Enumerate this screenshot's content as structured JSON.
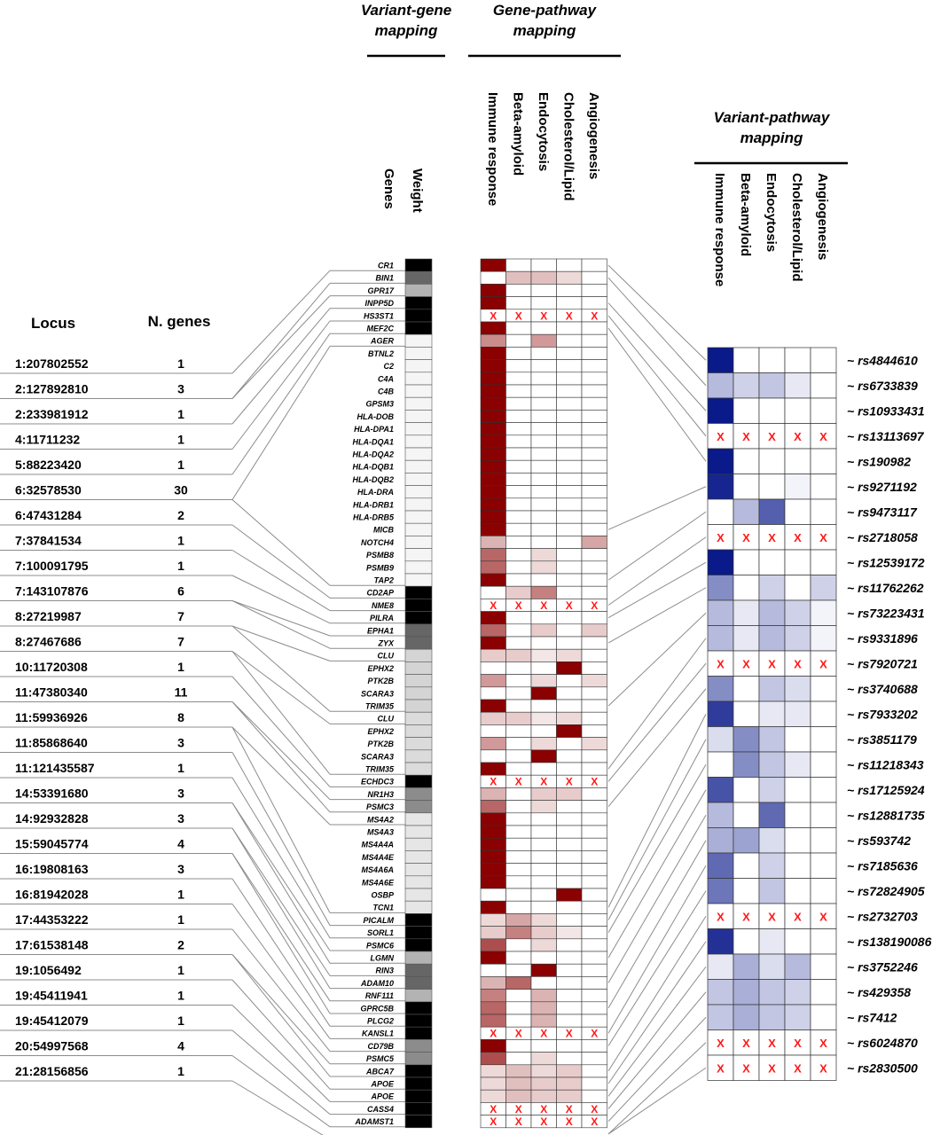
{
  "headers": {
    "variant_gene": [
      "Variant-gene",
      "mapping"
    ],
    "gene_pathway": [
      "Gene-pathway",
      "mapping"
    ],
    "variant_pathway": [
      "Variant-pathway",
      "mapping"
    ],
    "genes_col": "Genes",
    "weight_col": "Weight",
    "locus_col": "Locus",
    "ngenes_col": "N. genes"
  },
  "pathways": [
    "Immune response",
    "Beta-amyloid",
    "Endocytosis",
    "Cholesterol/Lipid",
    "Angiogenesis"
  ],
  "colors": {
    "gene_pathway_full": "#8b0000",
    "variant_pathway_full": "#0a1a8a",
    "x_mark": "#ff1a1a",
    "line": "#8c8c8c"
  },
  "x_label": "X",
  "loci": [
    {
      "locus": "1:207802552",
      "n_genes": "1"
    },
    {
      "locus": "2:127892810",
      "n_genes": "3"
    },
    {
      "locus": "2:233981912",
      "n_genes": "1"
    },
    {
      "locus": "4:11711232",
      "n_genes": "1"
    },
    {
      "locus": "5:88223420",
      "n_genes": "1"
    },
    {
      "locus": "6:32578530",
      "n_genes": "30"
    },
    {
      "locus": "6:47431284",
      "n_genes": "2"
    },
    {
      "locus": "7:37841534",
      "n_genes": "1"
    },
    {
      "locus": "7:100091795",
      "n_genes": "1"
    },
    {
      "locus": "7:143107876",
      "n_genes": "6"
    },
    {
      "locus": "8:27219987",
      "n_genes": "7"
    },
    {
      "locus": "8:27467686",
      "n_genes": "7"
    },
    {
      "locus": "10:11720308",
      "n_genes": "1"
    },
    {
      "locus": "11:47380340",
      "n_genes": "11"
    },
    {
      "locus": "11:59936926",
      "n_genes": "8"
    },
    {
      "locus": "11:85868640",
      "n_genes": "3"
    },
    {
      "locus": "11:121435587",
      "n_genes": "1"
    },
    {
      "locus": "14:53391680",
      "n_genes": "3"
    },
    {
      "locus": "14:92932828",
      "n_genes": "3"
    },
    {
      "locus": "15:59045774",
      "n_genes": "4"
    },
    {
      "locus": "16:19808163",
      "n_genes": "3"
    },
    {
      "locus": "16:81942028",
      "n_genes": "1"
    },
    {
      "locus": "17:44353222",
      "n_genes": "1"
    },
    {
      "locus": "17:61538148",
      "n_genes": "2"
    },
    {
      "locus": "19:1056492",
      "n_genes": "1"
    },
    {
      "locus": "19:45411941",
      "n_genes": "1"
    },
    {
      "locus": "19:45412079",
      "n_genes": "1"
    },
    {
      "locus": "20:54997568",
      "n_genes": "4"
    },
    {
      "locus": "21:28156856",
      "n_genes": "1"
    }
  ],
  "genes": [
    {
      "name": "CR1",
      "weight": 1.0,
      "p": [
        1,
        0,
        0,
        0,
        0
      ]
    },
    {
      "name": "BIN1",
      "weight": 0.6,
      "p": [
        0,
        0.25,
        0.25,
        0.15,
        0
      ]
    },
    {
      "name": "GPR17",
      "weight": 0.3,
      "p": [
        1,
        0,
        0,
        0,
        0
      ]
    },
    {
      "name": "INPP5D",
      "weight": 1.0,
      "p": [
        1,
        0,
        0,
        0,
        0
      ]
    },
    {
      "name": "HS3ST1",
      "weight": 1.0,
      "p": [
        "X",
        "X",
        "X",
        "X",
        "X"
      ]
    },
    {
      "name": "MEF2C",
      "weight": 1.0,
      "p": [
        1,
        0,
        0,
        0,
        0
      ]
    },
    {
      "name": "AGER",
      "weight": 0.04,
      "p": [
        0.45,
        0,
        0.4,
        0,
        0
      ]
    },
    {
      "name": "BTNL2",
      "weight": 0.04,
      "p": [
        1,
        0,
        0,
        0,
        0
      ]
    },
    {
      "name": "C2",
      "weight": 0.04,
      "p": [
        1,
        0,
        0,
        0,
        0
      ]
    },
    {
      "name": "C4A",
      "weight": 0.04,
      "p": [
        1,
        0,
        0,
        0,
        0
      ]
    },
    {
      "name": "C4B",
      "weight": 0.04,
      "p": [
        1,
        0,
        0,
        0,
        0
      ]
    },
    {
      "name": "GPSM3",
      "weight": 0.04,
      "p": [
        1,
        0,
        0,
        0,
        0
      ]
    },
    {
      "name": "HLA-DOB",
      "weight": 0.04,
      "p": [
        1,
        0,
        0,
        0,
        0
      ]
    },
    {
      "name": "HLA-DPA1",
      "weight": 0.04,
      "p": [
        1,
        0,
        0,
        0,
        0
      ]
    },
    {
      "name": "HLA-DQA1",
      "weight": 0.04,
      "p": [
        1,
        0,
        0,
        0,
        0
      ]
    },
    {
      "name": "HLA-DQA2",
      "weight": 0.04,
      "p": [
        1,
        0,
        0,
        0,
        0
      ]
    },
    {
      "name": "HLA-DQB1",
      "weight": 0.04,
      "p": [
        1,
        0,
        0,
        0,
        0
      ]
    },
    {
      "name": "HLA-DQB2",
      "weight": 0.04,
      "p": [
        1,
        0,
        0,
        0,
        0
      ]
    },
    {
      "name": "HLA-DRA",
      "weight": 0.04,
      "p": [
        1,
        0,
        0,
        0,
        0
      ]
    },
    {
      "name": "HLA-DRB1",
      "weight": 0.04,
      "p": [
        1,
        0,
        0,
        0,
        0
      ]
    },
    {
      "name": "HLA-DRB5",
      "weight": 0.04,
      "p": [
        1,
        0,
        0,
        0,
        0
      ]
    },
    {
      "name": "MICB",
      "weight": 0.04,
      "p": [
        1,
        0,
        0,
        0,
        0
      ]
    },
    {
      "name": "NOTCH4",
      "weight": 0.04,
      "p": [
        0.3,
        0,
        0,
        0,
        0.35
      ]
    },
    {
      "name": "PSMB8",
      "weight": 0.04,
      "p": [
        0.6,
        0,
        0.15,
        0,
        0
      ]
    },
    {
      "name": "PSMB9",
      "weight": 0.04,
      "p": [
        0.6,
        0,
        0.15,
        0,
        0
      ]
    },
    {
      "name": "TAP2",
      "weight": 0.04,
      "p": [
        1,
        0,
        0,
        0,
        0
      ]
    },
    {
      "name": "CD2AP",
      "weight": 1.0,
      "p": [
        0,
        0.2,
        0.5,
        0,
        0
      ]
    },
    {
      "name": "NME8",
      "weight": 1.0,
      "p": [
        "X",
        "X",
        "X",
        "X",
        "X"
      ]
    },
    {
      "name": "PILRA",
      "weight": 1.0,
      "p": [
        1,
        0,
        0,
        0,
        0
      ]
    },
    {
      "name": "EPHA1",
      "weight": 0.6,
      "p": [
        0.6,
        0,
        0.2,
        0,
        0.2
      ]
    },
    {
      "name": "ZYX",
      "weight": 0.6,
      "p": [
        1,
        0,
        0,
        0,
        0
      ]
    },
    {
      "name": "CLU",
      "weight": 0.17,
      "p": [
        0.2,
        0.2,
        0.1,
        0.15,
        0
      ]
    },
    {
      "name": "EPHX2",
      "weight": 0.17,
      "p": [
        0,
        0,
        0,
        1,
        0
      ]
    },
    {
      "name": "PTK2B",
      "weight": 0.17,
      "p": [
        0.4,
        0,
        0.15,
        0,
        0.15
      ]
    },
    {
      "name": "SCARA3",
      "weight": 0.17,
      "p": [
        0,
        0,
        1,
        0,
        0
      ]
    },
    {
      "name": "TRIM35",
      "weight": 0.17,
      "p": [
        1,
        0,
        0,
        0,
        0
      ]
    },
    {
      "name": "CLU",
      "weight": 0.14,
      "p": [
        0.2,
        0.2,
        0.1,
        0.15,
        0
      ]
    },
    {
      "name": "EPHX2",
      "weight": 0.14,
      "p": [
        0,
        0,
        0,
        1,
        0
      ]
    },
    {
      "name": "PTK2B",
      "weight": 0.14,
      "p": [
        0.4,
        0,
        0.15,
        0,
        0.15
      ]
    },
    {
      "name": "SCARA3",
      "weight": 0.14,
      "p": [
        0,
        0,
        1,
        0,
        0
      ]
    },
    {
      "name": "TRIM35",
      "weight": 0.14,
      "p": [
        1,
        0,
        0,
        0,
        0
      ]
    },
    {
      "name": "ECHDC3",
      "weight": 1.0,
      "p": [
        "X",
        "X",
        "X",
        "X",
        "X"
      ]
    },
    {
      "name": "NR1H3",
      "weight": 0.45,
      "p": [
        0.3,
        0,
        0.2,
        0.2,
        0
      ]
    },
    {
      "name": "PSMC3",
      "weight": 0.45,
      "p": [
        0.6,
        0,
        0.15,
        0,
        0
      ]
    },
    {
      "name": "MS4A2",
      "weight": 0.1,
      "p": [
        1,
        0,
        0,
        0,
        0
      ]
    },
    {
      "name": "MS4A3",
      "weight": 0.1,
      "p": [
        1,
        0,
        0,
        0,
        0
      ]
    },
    {
      "name": "MS4A4A",
      "weight": 0.1,
      "p": [
        1,
        0,
        0,
        0,
        0
      ]
    },
    {
      "name": "MS4A4E",
      "weight": 0.1,
      "p": [
        1,
        0,
        0,
        0,
        0
      ]
    },
    {
      "name": "MS4A6A",
      "weight": 0.1,
      "p": [
        1,
        0,
        0,
        0,
        0
      ]
    },
    {
      "name": "MS4A6E",
      "weight": 0.1,
      "p": [
        1,
        0,
        0,
        0,
        0
      ]
    },
    {
      "name": "OSBP",
      "weight": 0.1,
      "p": [
        0,
        0,
        0,
        1,
        0
      ]
    },
    {
      "name": "TCN1",
      "weight": 0.1,
      "p": [
        1,
        0,
        0,
        0,
        0
      ]
    },
    {
      "name": "PICALM",
      "weight": 1.0,
      "p": [
        0.15,
        0.35,
        0.15,
        0,
        0
      ]
    },
    {
      "name": "SORL1",
      "weight": 1.0,
      "p": [
        0.2,
        0.5,
        0.2,
        0.1,
        0
      ]
    },
    {
      "name": "PSMC6",
      "weight": 1.0,
      "p": [
        0.7,
        0,
        0.15,
        0,
        0
      ]
    },
    {
      "name": "LGMN",
      "weight": 0.3,
      "p": [
        1,
        0,
        0,
        0,
        0
      ]
    },
    {
      "name": "RIN3",
      "weight": 0.6,
      "p": [
        0,
        0,
        1,
        0,
        0
      ]
    },
    {
      "name": "ADAM10",
      "weight": 0.6,
      "p": [
        0.3,
        0.6,
        0,
        0,
        0
      ]
    },
    {
      "name": "RNF111",
      "weight": 0.3,
      "p": [
        0.5,
        0,
        0.3,
        0,
        0
      ]
    },
    {
      "name": "GPRC5B",
      "weight": 1.0,
      "p": [
        0.6,
        0,
        0.3,
        0,
        0
      ]
    },
    {
      "name": "PLCG2",
      "weight": 1.0,
      "p": [
        0.6,
        0,
        0.3,
        0,
        0
      ]
    },
    {
      "name": "KANSL1",
      "weight": 1.0,
      "p": [
        "X",
        "X",
        "X",
        "X",
        "X"
      ]
    },
    {
      "name": "CD79B",
      "weight": 0.45,
      "p": [
        1,
        0,
        0,
        0,
        0
      ]
    },
    {
      "name": "PSMC5",
      "weight": 0.45,
      "p": [
        0.7,
        0,
        0.15,
        0,
        0
      ]
    },
    {
      "name": "ABCA7",
      "weight": 1.0,
      "p": [
        0.15,
        0.25,
        0.15,
        0.2,
        0
      ]
    },
    {
      "name": "APOE",
      "weight": 1.0,
      "p": [
        0.15,
        0.25,
        0.2,
        0.2,
        0
      ]
    },
    {
      "name": "APOE",
      "weight": 1.0,
      "p": [
        0.15,
        0.25,
        0.2,
        0.2,
        0
      ]
    },
    {
      "name": "CASS4",
      "weight": 1.0,
      "p": [
        "X",
        "X",
        "X",
        "X",
        "X"
      ]
    },
    {
      "name": "ADAMST1",
      "weight": 1.0,
      "p": [
        "X",
        "X",
        "X",
        "X",
        "X"
      ]
    }
  ],
  "variants": [
    {
      "rs": "~ rs4844610",
      "v": [
        1,
        0,
        0,
        0,
        0
      ]
    },
    {
      "rs": "~ rs6733839",
      "v": [
        0.3,
        0.2,
        0.25,
        0.1,
        0
      ]
    },
    {
      "rs": "~ rs10933431",
      "v": [
        1,
        0,
        0,
        0,
        0
      ]
    },
    {
      "rs": "~ rs13113697",
      "v": [
        "X",
        "X",
        "X",
        "X",
        "X"
      ]
    },
    {
      "rs": "~ rs190982",
      "v": [
        1,
        0,
        0,
        0,
        0
      ]
    },
    {
      "rs": "~ rs9271192",
      "v": [
        0.95,
        0,
        0,
        0.05,
        0
      ]
    },
    {
      "rs": "~ rs9473117",
      "v": [
        0,
        0.3,
        0.7,
        0,
        0
      ]
    },
    {
      "rs": "~ rs2718058",
      "v": [
        "X",
        "X",
        "X",
        "X",
        "X"
      ]
    },
    {
      "rs": "~ rs12539172",
      "v": [
        1,
        0,
        0,
        0,
        0
      ]
    },
    {
      "rs": "~ rs11762262",
      "v": [
        0.5,
        0,
        0.2,
        0,
        0.2
      ]
    },
    {
      "rs": "~ rs73223431",
      "v": [
        0.3,
        0.1,
        0.3,
        0.2,
        0.05
      ]
    },
    {
      "rs": "~ rs9331896",
      "v": [
        0.3,
        0.1,
        0.3,
        0.2,
        0.05
      ]
    },
    {
      "rs": "~ rs7920721",
      "v": [
        "X",
        "X",
        "X",
        "X",
        "X"
      ]
    },
    {
      "rs": "~ rs3740688",
      "v": [
        0.5,
        0,
        0.25,
        0.15,
        0
      ]
    },
    {
      "rs": "~ rs7933202",
      "v": [
        0.85,
        0,
        0.1,
        0.1,
        0
      ]
    },
    {
      "rs": "~ rs3851179",
      "v": [
        0.15,
        0.5,
        0.25,
        0,
        0
      ]
    },
    {
      "rs": "~ rs11218343",
      "v": [
        0,
        0.5,
        0.25,
        0.1,
        0
      ]
    },
    {
      "rs": "~ rs17125924",
      "v": [
        0.75,
        0,
        0.2,
        0,
        0
      ]
    },
    {
      "rs": "~ rs12881735",
      "v": [
        0.3,
        0,
        0.65,
        0,
        0
      ]
    },
    {
      "rs": "~ rs593742",
      "v": [
        0.35,
        0.4,
        0.15,
        0,
        0
      ]
    },
    {
      "rs": "~ rs7185636",
      "v": [
        0.65,
        0,
        0.2,
        0,
        0
      ]
    },
    {
      "rs": "~ rs72824905",
      "v": [
        0.6,
        0,
        0.25,
        0,
        0
      ]
    },
    {
      "rs": "~ rs2732703",
      "v": [
        "X",
        "X",
        "X",
        "X",
        "X"
      ]
    },
    {
      "rs": "~ rs138190086",
      "v": [
        0.9,
        0,
        0.1,
        0,
        0
      ]
    },
    {
      "rs": "~ rs3752246",
      "v": [
        0.1,
        0.35,
        0.15,
        0.3,
        0
      ]
    },
    {
      "rs": "~ rs429358",
      "v": [
        0.25,
        0.35,
        0.25,
        0.2,
        0
      ]
    },
    {
      "rs": "~ rs7412",
      "v": [
        0.25,
        0.35,
        0.25,
        0.2,
        0
      ]
    },
    {
      "rs": "~ rs6024870",
      "v": [
        "X",
        "X",
        "X",
        "X",
        "X"
      ]
    },
    {
      "rs": "~ rs2830500",
      "v": [
        "X",
        "X",
        "X",
        "X",
        "X"
      ]
    }
  ],
  "locus_gene_lines": [
    [
      0,
      0
    ],
    [
      1,
      1
    ],
    [
      1,
      2
    ],
    [
      2,
      3
    ],
    [
      3,
      4
    ],
    [
      4,
      5
    ],
    [
      5,
      6
    ],
    [
      5,
      25
    ],
    [
      6,
      26
    ],
    [
      7,
      27
    ],
    [
      8,
      28
    ],
    [
      9,
      29
    ],
    [
      9,
      30
    ],
    [
      10,
      31
    ],
    [
      10,
      35
    ],
    [
      11,
      36
    ],
    [
      11,
      40
    ],
    [
      12,
      41
    ],
    [
      13,
      42
    ],
    [
      13,
      43
    ],
    [
      14,
      44
    ],
    [
      14,
      51
    ],
    [
      15,
      52
    ],
    [
      16,
      53
    ],
    [
      17,
      54
    ],
    [
      17,
      55
    ],
    [
      18,
      56
    ],
    [
      18,
      57
    ],
    [
      19,
      58
    ],
    [
      19,
      59
    ],
    [
      20,
      60
    ],
    [
      21,
      61
    ],
    [
      22,
      62
    ],
    [
      23,
      63
    ],
    [
      23,
      64
    ],
    [
      24,
      65
    ],
    [
      25,
      66
    ],
    [
      26,
      67
    ],
    [
      27,
      68
    ],
    [
      28,
      69
    ]
  ],
  "gene_variant_lines": [
    [
      0,
      0
    ],
    [
      1,
      1
    ],
    [
      3,
      2
    ],
    [
      4,
      3
    ],
    [
      5,
      4
    ],
    [
      21,
      5
    ],
    [
      25,
      6
    ],
    [
      27,
      7
    ],
    [
      28,
      8
    ],
    [
      30,
      9
    ],
    [
      35,
      10
    ],
    [
      40,
      11
    ],
    [
      41,
      12
    ],
    [
      43,
      13
    ],
    [
      51,
      14
    ],
    [
      52,
      15
    ],
    [
      53,
      16
    ],
    [
      55,
      17
    ],
    [
      57,
      18
    ],
    [
      59,
      19
    ],
    [
      61,
      20
    ],
    [
      62,
      21
    ],
    [
      64,
      22
    ],
    [
      65,
      23
    ],
    [
      66,
      24
    ],
    [
      67,
      25
    ],
    [
      68,
      26
    ],
    [
      69,
      27
    ],
    [
      69,
      28
    ]
  ]
}
